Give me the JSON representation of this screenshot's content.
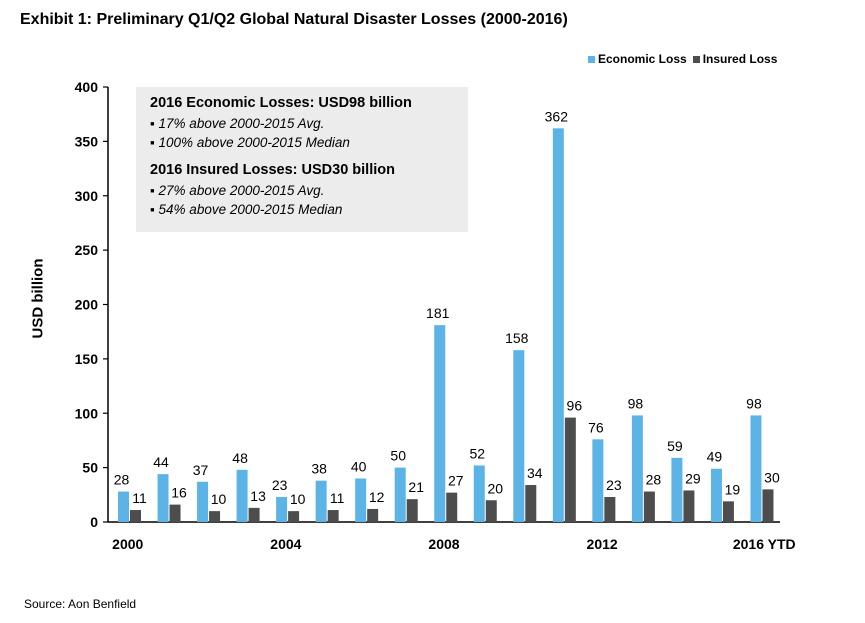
{
  "header": {
    "title": "Exhibit 1: Preliminary Q1/Q2 Global Natural Disaster Losses (2000-2016)"
  },
  "footer": {
    "source": "Source: Aon Benfield"
  },
  "legend": {
    "economic": {
      "label": "Economic Loss",
      "color": "#5bb4e5"
    },
    "insured": {
      "label": "Insured Loss",
      "color": "#4d4d4d"
    }
  },
  "infobox": {
    "economic_heading": "2016 Economic Losses: USD98 billion",
    "economic_bullet1": "▪ 17% above 2000-2015 Avg.",
    "economic_bullet2": "▪ 100% above 2000-2015 Median",
    "insured_heading": "2016 Insured Losses: USD30 billion",
    "insured_bullet1": "▪ 27% above 2000-2015 Avg.",
    "insured_bullet2": "▪ 54% above 2000-2015 Median"
  },
  "chart_data": {
    "type": "bar",
    "title": "Exhibit 1: Preliminary Q1/Q2 Global Natural Disaster Losses (2000-2016)",
    "xlabel": "",
    "ylabel": "USD billion",
    "ylim": [
      0,
      400
    ],
    "yticks": [
      0,
      50,
      100,
      150,
      200,
      250,
      300,
      350,
      400
    ],
    "categories": [
      "2000",
      "2001",
      "2002",
      "2003",
      "2004",
      "2005",
      "2006",
      "2007",
      "2008",
      "2009",
      "2010",
      "2011",
      "2012",
      "2013",
      "2014",
      "2015",
      "2016 YTD"
    ],
    "xtick_labels": [
      {
        "index": 0,
        "label": "2000"
      },
      {
        "index": 4,
        "label": "2004"
      },
      {
        "index": 8,
        "label": "2008"
      },
      {
        "index": 12,
        "label": "2012"
      },
      {
        "index": 16,
        "label": "2016 YTD"
      }
    ],
    "series": [
      {
        "name": "Economic Loss",
        "color": "#5bb4e5",
        "values": [
          28,
          44,
          37,
          48,
          23,
          38,
          40,
          50,
          181,
          52,
          158,
          362,
          76,
          98,
          59,
          49,
          98
        ]
      },
      {
        "name": "Insured Loss",
        "color": "#4d4d4d",
        "values": [
          11,
          16,
          10,
          13,
          10,
          11,
          12,
          21,
          27,
          20,
          34,
          96,
          23,
          28,
          29,
          19,
          30
        ]
      }
    ],
    "legend_position": "top-right",
    "grid": false
  }
}
